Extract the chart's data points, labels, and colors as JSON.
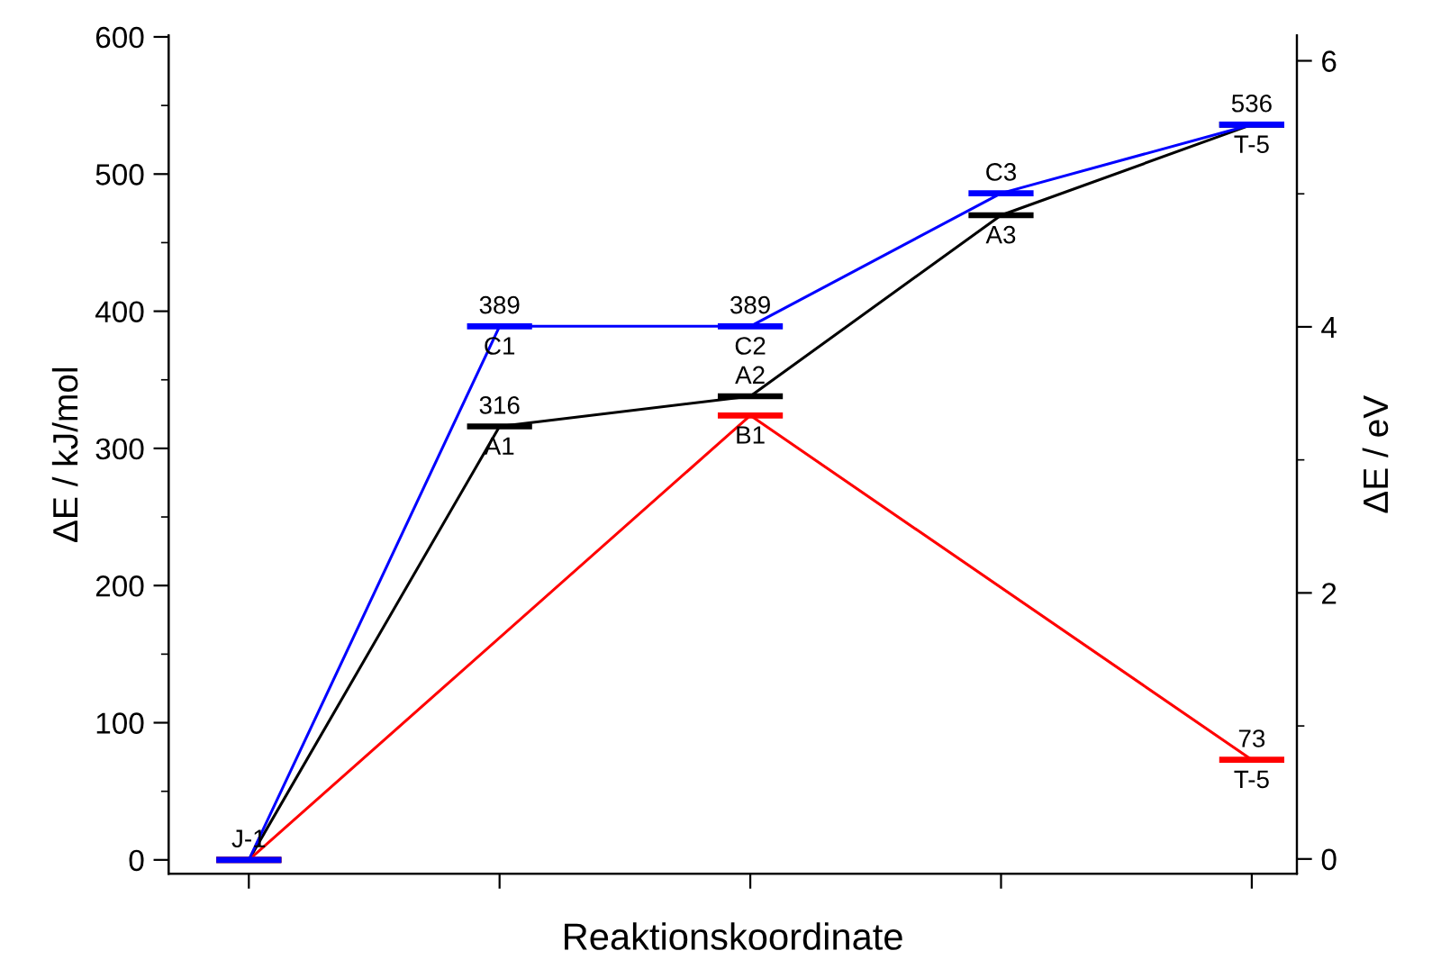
{
  "chart_data": {
    "type": "line",
    "xlabel": "Reaktionskoordinate",
    "ylabel": "ΔE / kJ/mol",
    "y2label": "ΔE / eV",
    "categories": [
      null,
      null,
      null,
      null,
      null
    ],
    "ylim": [
      -10,
      601
    ],
    "yticks": [
      0,
      100,
      200,
      300,
      400,
      500,
      600
    ],
    "y2lim": [
      -0.11,
      6.19
    ],
    "y2ticks": [
      0,
      2,
      4,
      6
    ],
    "grid": false,
    "legend": false,
    "series": [
      {
        "color": "#000000",
        "values": [
          0,
          316,
          338,
          470,
          536
        ],
        "value_labels": [
          "J-1\n",
          "316\nA1",
          "A2\n",
          "\nA3",
          null
        ]
      },
      {
        "color": "#ff0000",
        "values": [
          0,
          null,
          324,
          null,
          73
        ],
        "value_labels": [
          null,
          null,
          "\nB1",
          null,
          "73\nT-5"
        ]
      },
      {
        "color": "#0000ff",
        "values": [
          0,
          389,
          389,
          486,
          536
        ],
        "value_labels": [
          null,
          "389\nC1",
          "389\nC2",
          "C3\n",
          "536\nT-5"
        ]
      }
    ]
  }
}
